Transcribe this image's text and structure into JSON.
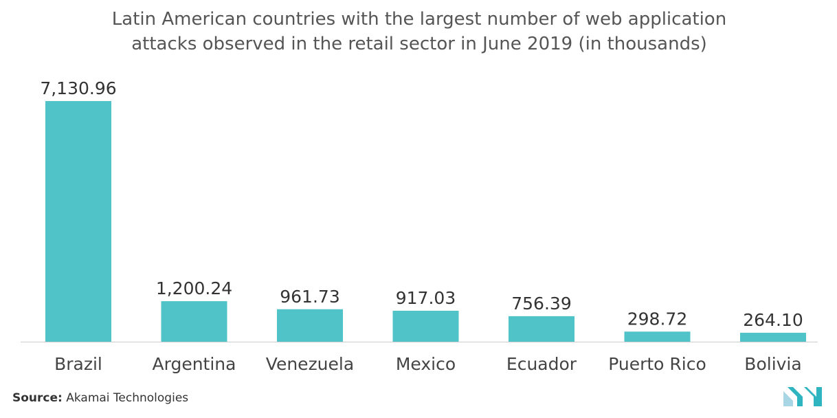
{
  "chart_data": {
    "type": "bar",
    "title_lines": [
      "Latin American countries with the largest number of web application",
      "attacks observed in the retail sector in June 2019 (in thousands)"
    ],
    "categories": [
      "Brazil",
      "Argentina",
      "Venezuela",
      "Mexico",
      "Ecuador",
      "Puerto Rico",
      "Bolivia"
    ],
    "values": [
      7130.96,
      1200.24,
      961.73,
      917.03,
      756.39,
      298.72,
      264.1
    ],
    "value_labels": [
      "7,130.96",
      "1,200.24",
      "961.73",
      "917.03",
      "756.39",
      "298.72",
      "264.10"
    ],
    "bar_color": "#4fc3c8",
    "ylim": [
      0,
      7130.96
    ],
    "grid": false,
    "legend": "none"
  },
  "footer": {
    "source_prefix": "Source:",
    "source_text": " Akamai Technologies",
    "logo_colors": [
      "#a9d6e5",
      "#2fb5c0"
    ]
  }
}
